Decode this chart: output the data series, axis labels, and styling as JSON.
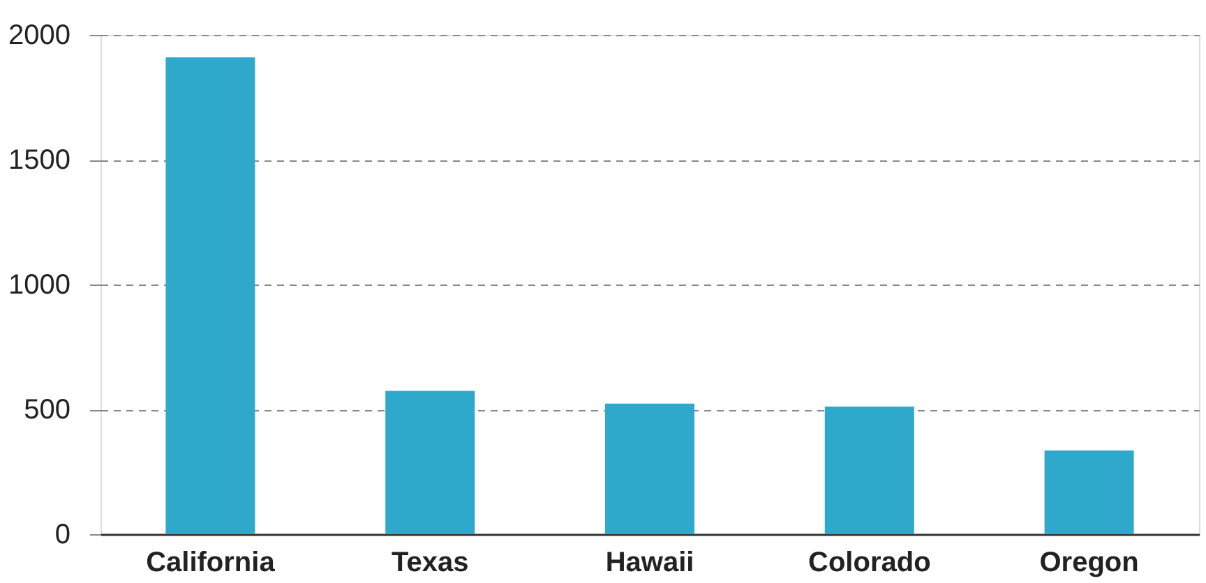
{
  "chart_data": {
    "type": "bar",
    "categories": [
      "California",
      "Texas",
      "Hawaii",
      "Colorado",
      "Oregon"
    ],
    "values": [
      1910,
      574,
      523,
      511,
      335
    ],
    "color": "#2fa9cb",
    "ylim": [
      0,
      2000
    ],
    "yticks": [
      0,
      500,
      1000,
      1500,
      2000
    ],
    "grid": "y"
  }
}
